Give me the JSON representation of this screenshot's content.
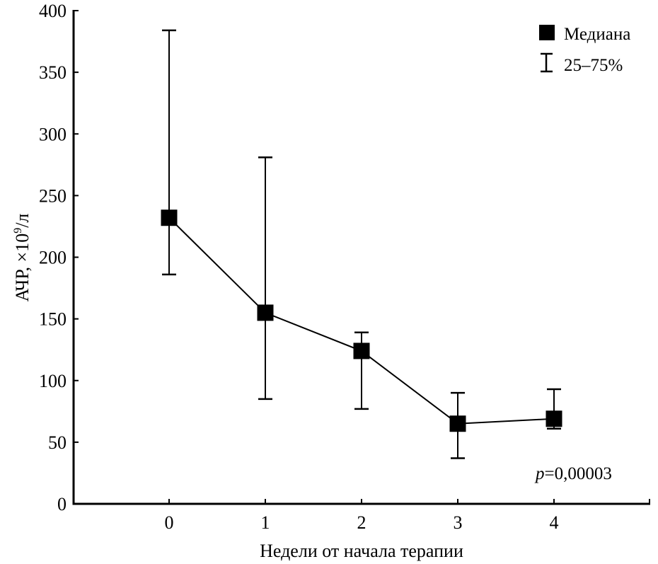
{
  "chart_data": {
    "type": "line",
    "title": "",
    "xlabel": "Недели от начала терапии",
    "ylabel": "АЧР, ×10⁹/л",
    "ylabel_parts": {
      "main": "АЧР, ×10",
      "sup": "9",
      "unit": "/л"
    },
    "x": [
      0,
      1,
      2,
      3,
      4
    ],
    "x_tick_labels": [
      "0",
      "1",
      "2",
      "3",
      "4"
    ],
    "xlim": [
      -1,
      4.99
    ],
    "ylim": [
      0,
      400
    ],
    "y_ticks": [
      0,
      50,
      100,
      150,
      200,
      250,
      300,
      350,
      400
    ],
    "y_tick_labels": [
      "0",
      "50",
      "100",
      "150",
      "200",
      "250",
      "300",
      "350",
      "400"
    ],
    "grid": false,
    "series": [
      {
        "name": "Медиана",
        "marker": "square",
        "color": "#000000",
        "values": [
          232,
          155,
          124,
          65,
          69
        ],
        "q25": [
          186,
          85,
          77,
          37,
          61
        ],
        "q75": [
          384,
          281,
          139,
          90,
          93
        ]
      }
    ],
    "legend": {
      "position": "top-right",
      "entries": [
        {
          "label": "Медиана",
          "symbol": "square"
        },
        {
          "label": "25–75%",
          "symbol": "error-bar"
        }
      ]
    },
    "annotations": [
      {
        "text_italic": "p",
        "text": "=0,00003"
      }
    ]
  }
}
